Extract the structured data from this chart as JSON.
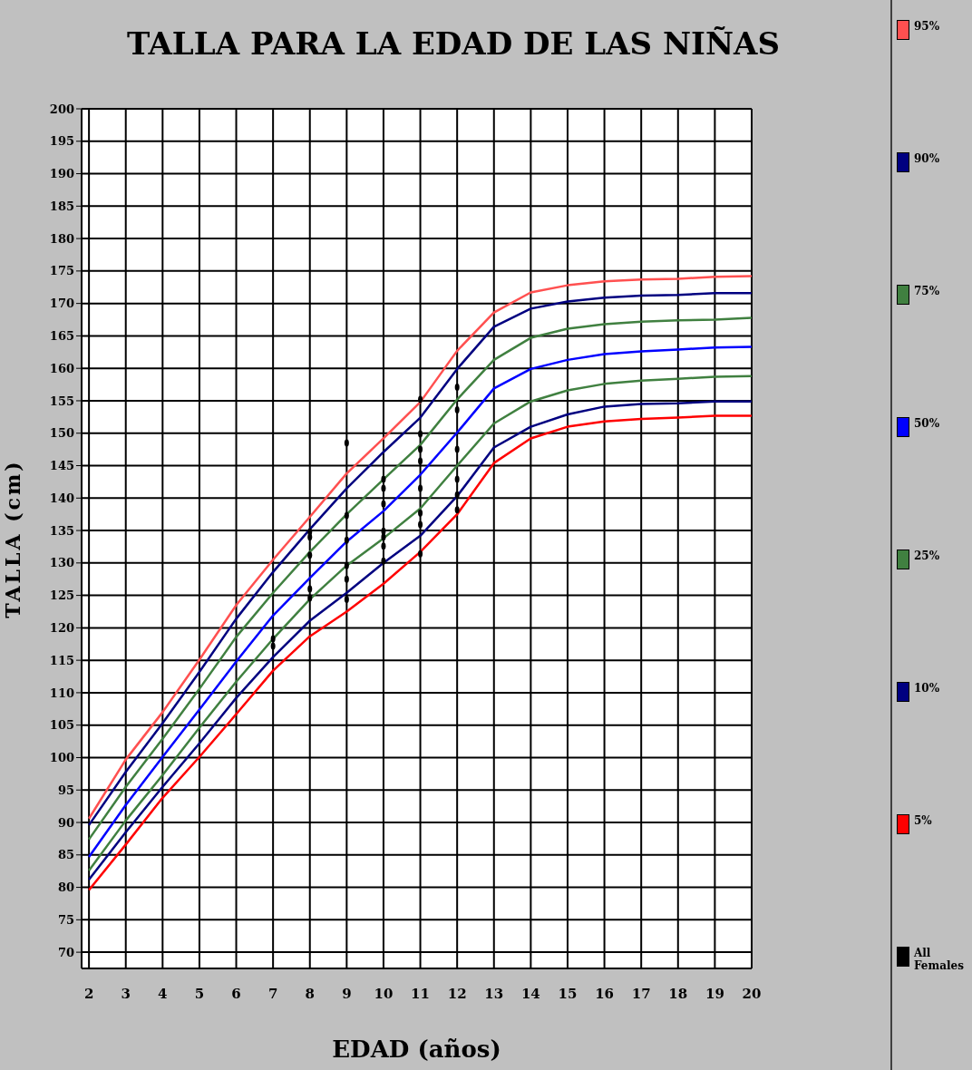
{
  "chart_data": {
    "type": "line",
    "title": "TALLA PARA LA EDAD DE LAS NIÑAS",
    "xlabel": "EDAD (años)",
    "ylabel": "TALLA (cm)",
    "x": [
      2,
      3,
      4,
      5,
      6,
      7,
      8,
      9,
      10,
      11,
      12,
      13,
      14,
      15,
      16,
      17,
      18,
      19,
      20
    ],
    "xlim": [
      1.8,
      20
    ],
    "xticks": [
      2,
      3,
      4,
      5,
      6,
      7,
      8,
      9,
      10,
      11,
      12,
      13,
      14,
      15,
      16,
      17,
      18,
      19,
      20
    ],
    "ylim": [
      67.5,
      200
    ],
    "yticks": [
      70,
      75,
      80,
      85,
      90,
      95,
      100,
      105,
      110,
      115,
      120,
      125,
      130,
      135,
      140,
      145,
      150,
      155,
      160,
      165,
      170,
      175,
      180,
      185,
      190,
      195,
      200
    ],
    "grid": true,
    "legend": "right",
    "line_style": "solid",
    "series": [
      {
        "name": "95%",
        "color": "#ff5050",
        "values": [
          90.6,
          99.7,
          107,
          115.1,
          123.5,
          130.5,
          137.1,
          143.8,
          149.2,
          154.8,
          162.7,
          168.6,
          171.7,
          172.8,
          173.4,
          173.7,
          173.8,
          174.1,
          174.2
        ]
      },
      {
        "name": "90%",
        "color": "#000080",
        "values": [
          89.6,
          97.8,
          105.3,
          113.2,
          121.4,
          128.6,
          135.2,
          141.5,
          147.1,
          152.4,
          159.9,
          166.4,
          169.2,
          170.3,
          170.9,
          171.2,
          171.3,
          171.6,
          171.6
        ]
      },
      {
        "name": "75%",
        "color": "#408040",
        "values": [
          87.4,
          95.5,
          102.9,
          110.6,
          118.6,
          125.4,
          131.7,
          137.5,
          142.9,
          148.2,
          155.2,
          161.3,
          164.7,
          166.1,
          166.8,
          167.2,
          167.4,
          167.5,
          167.8
        ]
      },
      {
        "name": "50%",
        "color": "#0000ff",
        "values": [
          84.7,
          92.7,
          100.1,
          107.4,
          114.8,
          121.9,
          127.7,
          133.3,
          138,
          143.6,
          150.1,
          156.9,
          159.9,
          161.3,
          162.2,
          162.6,
          162.9,
          163.2,
          163.3
        ]
      },
      {
        "name": "25%",
        "color": "#408040",
        "values": [
          82.6,
          90.3,
          97.3,
          104.6,
          111.7,
          118.3,
          124.4,
          129.6,
          133.8,
          138.4,
          145,
          151.5,
          154.9,
          156.6,
          157.6,
          158.1,
          158.4,
          158.7,
          158.8
        ]
      },
      {
        "name": "10%",
        "color": "#000080",
        "values": [
          81.2,
          88.5,
          95.5,
          102.2,
          109.2,
          115.5,
          121.1,
          125.4,
          130,
          134.2,
          140.3,
          147.8,
          151,
          152.9,
          154.1,
          154.5,
          154.6,
          154.9,
          154.9
        ]
      },
      {
        "name": "5%",
        "color": "#ff0000",
        "values": [
          79.6,
          86.6,
          93.8,
          100.1,
          106.7,
          113.4,
          118.7,
          122.5,
          126.8,
          131.7,
          137.5,
          145.4,
          149.2,
          151,
          151.8,
          152.2,
          152.4,
          152.7,
          152.7
        ]
      },
      {
        "name": "All Females",
        "type": "scatter",
        "color": "#000000",
        "x": [
          7,
          7,
          8,
          8,
          8,
          8,
          8,
          9,
          9,
          9,
          9,
          9,
          9,
          10,
          10,
          10,
          10,
          10,
          10,
          10,
          11,
          11,
          11,
          11,
          11,
          11,
          11,
          11,
          12,
          12,
          12,
          12,
          12,
          12
        ],
        "values": [
          118.3,
          117.2,
          134.8,
          134,
          131.2,
          126,
          124.6,
          148.5,
          137.3,
          133.5,
          129.6,
          127.5,
          124.4,
          142.9,
          141.5,
          139.1,
          134.9,
          134,
          132.6,
          130.3,
          155.2,
          149.9,
          147.5,
          145.7,
          141.5,
          137.7,
          135.9,
          131.4,
          157.1,
          153.6,
          147.5,
          142.9,
          140.5,
          138.2
        ]
      }
    ]
  }
}
